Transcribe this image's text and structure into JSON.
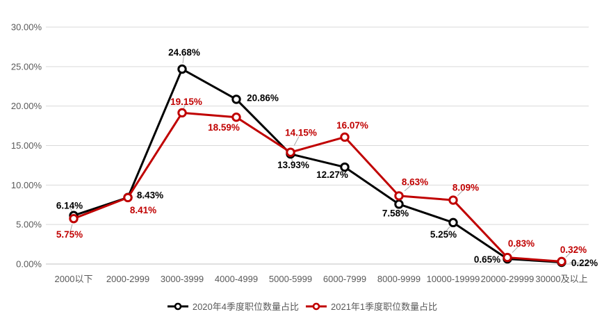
{
  "chart_data": {
    "type": "line",
    "title": "",
    "categories": [
      "2000以下",
      "2000-2999",
      "3000-3999",
      "4000-4999",
      "5000-5999",
      "6000-7999",
      "8000-9999",
      "10000-19999",
      "20000-29999",
      "30000及以上"
    ],
    "series": [
      {
        "name": "2020年4季度职位数量占比",
        "color": "#000000",
        "values": [
          6.14,
          8.43,
          24.68,
          20.86,
          13.93,
          12.27,
          7.58,
          5.25,
          0.65,
          0.22
        ],
        "label_offsets": [
          [
            -6,
            -14
          ],
          [
            32,
            -3
          ],
          [
            3,
            -24
          ],
          [
            38,
            -2
          ],
          [
            4,
            16
          ],
          [
            -18,
            11
          ],
          [
            -5,
            13
          ],
          [
            -14,
            17
          ],
          [
            -29,
            1
          ],
          [
            33,
            1
          ]
        ],
        "leaders": [
          true,
          true,
          true,
          false,
          true,
          false,
          false,
          true,
          false,
          true
        ]
      },
      {
        "name": "2021年1季度职位数量占比",
        "color": "#C00000",
        "values": [
          5.75,
          8.41,
          19.15,
          18.59,
          14.15,
          16.07,
          8.63,
          8.09,
          0.83,
          0.32
        ],
        "label_offsets": [
          [
            -6,
            23
          ],
          [
            22,
            18
          ],
          [
            6,
            -16
          ],
          [
            -18,
            15
          ],
          [
            15,
            -28
          ],
          [
            11,
            -17
          ],
          [
            23,
            -20
          ],
          [
            18,
            -18
          ],
          [
            20,
            -20
          ],
          [
            17,
            -17
          ]
        ],
        "leaders": [
          true,
          false,
          true,
          false,
          true,
          false,
          true,
          true,
          true,
          true
        ]
      }
    ],
    "y_axis": {
      "min": 0,
      "max": 30,
      "step": 5,
      "tick_labels": [
        "0.00%",
        "5.00%",
        "10.00%",
        "15.00%",
        "20.00%",
        "25.00%",
        "30.00%"
      ]
    },
    "data_label_format": "0.00%",
    "grid": true,
    "legend_position": "bottom",
    "colors": {
      "grid": "#D9D9D9",
      "axis_line": "#C0C0C0",
      "axis_text": "#595959",
      "leader": "#A6A6A6",
      "background": "#FFFFFF"
    }
  }
}
